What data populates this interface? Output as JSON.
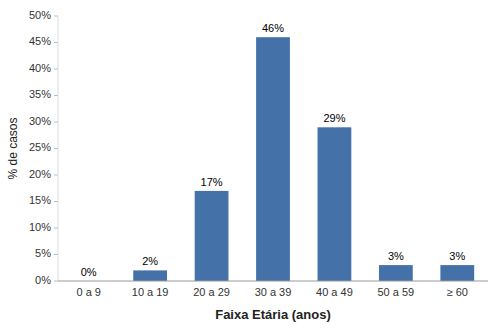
{
  "chart_data": {
    "type": "bar",
    "categories": [
      "0 a 9",
      "10 a 19",
      "20 a 29",
      "30 a 39",
      "40 a 49",
      "50 a 59",
      "≥ 60"
    ],
    "values": [
      0,
      2,
      17,
      46,
      29,
      3,
      3
    ],
    "value_labels": [
      "0%",
      "2%",
      "17%",
      "46%",
      "29%",
      "3%",
      "3%"
    ],
    "data_labels": true,
    "color": "#4472a8",
    "xlabel": "Faixa Etária (anos)",
    "ylabel": "% de casos",
    "ylim": [
      0,
      50
    ],
    "yticks": [
      {
        "value": 0,
        "label": "0%"
      },
      {
        "value": 5,
        "label": "5%"
      },
      {
        "value": 10,
        "label": "10%"
      },
      {
        "value": 15,
        "label": "15%"
      },
      {
        "value": 20,
        "label": "20%"
      },
      {
        "value": 25,
        "label": "25%"
      },
      {
        "value": 30,
        "label": "30%"
      },
      {
        "value": 35,
        "label": "35%"
      },
      {
        "value": 40,
        "label": "40%"
      },
      {
        "value": 45,
        "label": "45%"
      },
      {
        "value": 50,
        "label": "50%"
      }
    ],
    "grid": false
  }
}
